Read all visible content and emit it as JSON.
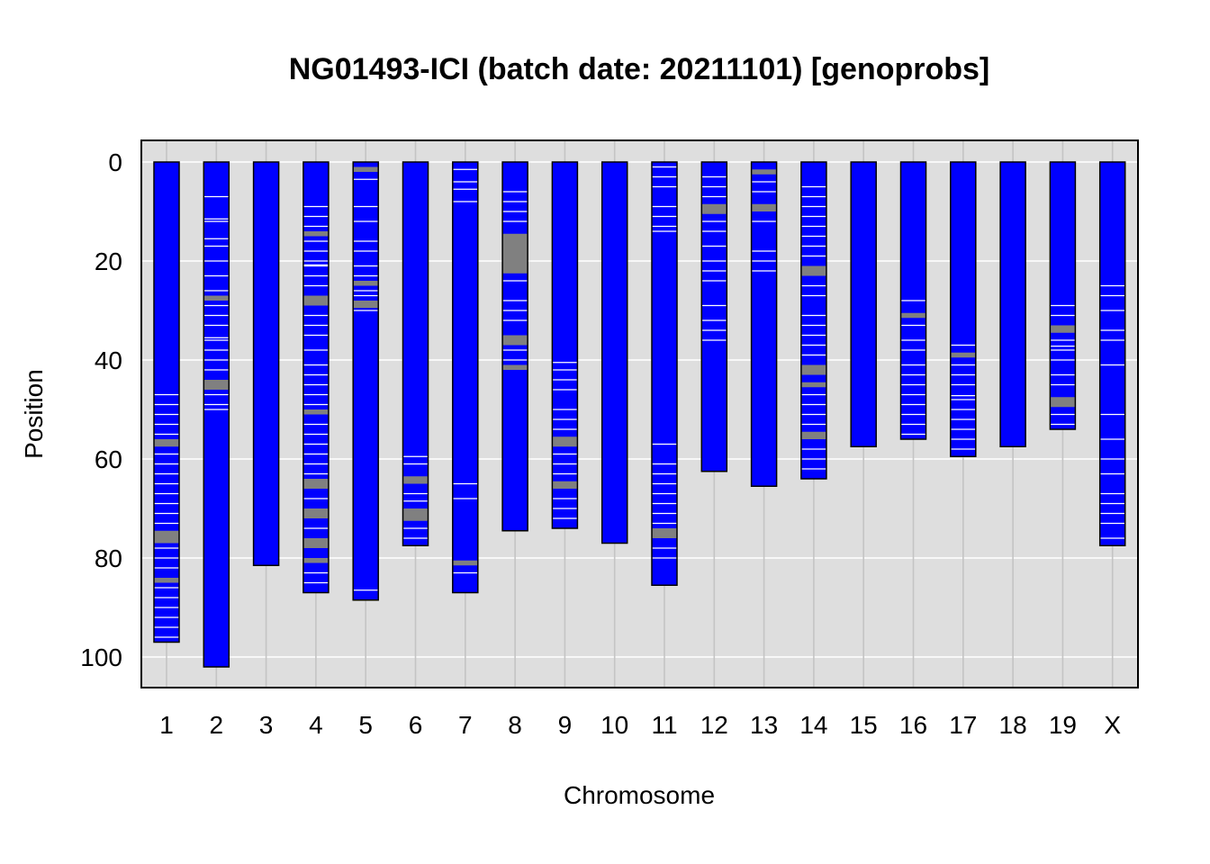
{
  "chart_data": {
    "type": "chromosome_ideogram",
    "title": "NG01493-ICI (batch date: 20211101) [genoprobs]",
    "xlabel": "Chromosome",
    "ylabel": "Position",
    "ylim": [
      0,
      105
    ],
    "y_reversed": true,
    "y_ticks": [
      "0",
      "20",
      "40",
      "60",
      "80",
      "100"
    ],
    "y_tick_values": [
      0,
      20,
      40,
      60,
      80,
      100
    ],
    "grid": true,
    "background_color": "#dedede",
    "bar_color": "#0000ff",
    "marker_colors": {
      "white": "#ffffff",
      "gray": "#808080"
    },
    "chromosomes": [
      {
        "name": "1",
        "length": 97.0,
        "gray": [
          [
            56,
            57.5
          ],
          [
            74.5,
            77
          ],
          [
            84,
            85
          ]
        ],
        "white": [
          [
            47,
            49,
            51,
            53,
            55,
            59,
            61,
            63,
            65,
            67,
            69,
            71,
            73,
            78,
            80,
            82,
            86,
            88,
            90,
            92,
            94,
            96
          ]
        ]
      },
      {
        "name": "2",
        "length": 102.0,
        "gray": [
          [
            27,
            28
          ],
          [
            44,
            46
          ]
        ],
        "white": [
          [
            7,
            11.5,
            12,
            15.5,
            17,
            20,
            23,
            26,
            29,
            31,
            33,
            35.5,
            36,
            38,
            40,
            42,
            47,
            49,
            50
          ]
        ]
      },
      {
        "name": "3",
        "length": 81.5,
        "gray": [],
        "white": [
          []
        ]
      },
      {
        "name": "4",
        "length": 87.0,
        "gray": [
          [
            14,
            15
          ],
          [
            27,
            29
          ],
          [
            50,
            51
          ],
          [
            64,
            66
          ],
          [
            70,
            72
          ],
          [
            76,
            78
          ],
          [
            80,
            81
          ]
        ],
        "white": [
          [
            9,
            11,
            13,
            16,
            18,
            20,
            20.8,
            21,
            23,
            25,
            31,
            33,
            35,
            38,
            41,
            43,
            45,
            47,
            49,
            53,
            55,
            57,
            59,
            61,
            63,
            68,
            74,
            83,
            85
          ]
        ]
      },
      {
        "name": "5",
        "length": 88.5,
        "gray": [
          [
            1,
            2
          ],
          [
            24,
            25
          ],
          [
            28,
            29.5
          ]
        ],
        "white": [
          [
            3.5,
            9,
            12,
            16,
            18,
            21,
            23,
            26,
            27,
            30,
            86.5
          ]
        ]
      },
      {
        "name": "6",
        "length": 77.5,
        "gray": [
          [
            63.5,
            65
          ],
          [
            70,
            72.5
          ]
        ],
        "white": [
          [
            59.5,
            61,
            67,
            68.5,
            74,
            76
          ]
        ]
      },
      {
        "name": "7",
        "length": 87.0,
        "gray": [
          [
            80.5,
            81.5
          ]
        ],
        "white": [
          [
            1.5,
            4,
            5.5,
            8,
            65,
            68,
            83
          ]
        ]
      },
      {
        "name": "8",
        "length": 74.5,
        "gray": [
          [
            14.5,
            22.5
          ],
          [
            35,
            37
          ],
          [
            41,
            42
          ]
        ],
        "white": [
          [
            6,
            8,
            10,
            12,
            24,
            28,
            30,
            32,
            38,
            40
          ]
        ]
      },
      {
        "name": "9",
        "length": 74.0,
        "gray": [
          [
            55.5,
            57.5
          ],
          [
            64.5,
            66
          ]
        ],
        "white": [
          [
            40.5,
            42,
            44,
            46,
            50,
            52,
            54,
            59,
            61,
            63,
            68,
            70,
            72
          ]
        ]
      },
      {
        "name": "10",
        "length": 77.0,
        "gray": [],
        "white": [
          []
        ]
      },
      {
        "name": "11",
        "length": 85.5,
        "gray": [
          [
            74,
            76
          ]
        ],
        "white": [
          [
            1,
            3,
            5,
            9,
            11,
            13,
            14,
            57,
            61,
            63,
            65,
            67,
            69,
            71,
            73,
            78,
            80
          ]
        ]
      },
      {
        "name": "12",
        "length": 62.5,
        "gray": [
          [
            8.5,
            10.5
          ]
        ],
        "white": [
          [
            3,
            5,
            7,
            12,
            14,
            17,
            20,
            22,
            24,
            29,
            32,
            34,
            36
          ]
        ]
      },
      {
        "name": "13",
        "length": 65.5,
        "gray": [
          [
            1.5,
            2.5
          ],
          [
            8.5,
            10
          ]
        ],
        "white": [
          [
            4,
            6,
            12,
            18,
            20,
            22
          ]
        ]
      },
      {
        "name": "14",
        "length": 64.0,
        "gray": [
          [
            21,
            23
          ],
          [
            41,
            43
          ],
          [
            44.5,
            45.5
          ],
          [
            54.5,
            56
          ]
        ],
        "white": [
          [
            5,
            7,
            9,
            11,
            13,
            15,
            17,
            19,
            25,
            27,
            31,
            33,
            35,
            37,
            39,
            47,
            49,
            51,
            53,
            58,
            60,
            62
          ]
        ]
      },
      {
        "name": "15",
        "length": 57.5,
        "gray": [],
        "white": [
          []
        ]
      },
      {
        "name": "16",
        "length": 56.0,
        "gray": [
          [
            30.5,
            31.5
          ]
        ],
        "white": [
          [
            28,
            33,
            36,
            38,
            41,
            43,
            45,
            47,
            49,
            51,
            53,
            55
          ]
        ]
      },
      {
        "name": "17",
        "length": 59.5,
        "gray": [
          [
            38.5,
            39.5
          ]
        ],
        "white": [
          [
            37,
            41,
            43,
            45,
            47.2,
            48,
            50,
            52,
            54,
            56,
            58
          ]
        ]
      },
      {
        "name": "18",
        "length": 57.5,
        "gray": [],
        "white": [
          []
        ]
      },
      {
        "name": "19",
        "length": 54.0,
        "gray": [
          [
            33,
            34.5
          ],
          [
            47.5,
            49.5
          ]
        ],
        "white": [
          [
            29,
            31,
            36,
            37.2,
            38,
            40,
            43,
            45,
            51,
            53
          ]
        ]
      },
      {
        "name": "X",
        "length": 77.5,
        "gray": [],
        "white": [
          [
            25,
            27,
            30,
            34,
            36,
            41,
            51,
            56,
            60,
            63,
            67,
            69,
            71,
            73,
            76
          ]
        ]
      }
    ]
  }
}
